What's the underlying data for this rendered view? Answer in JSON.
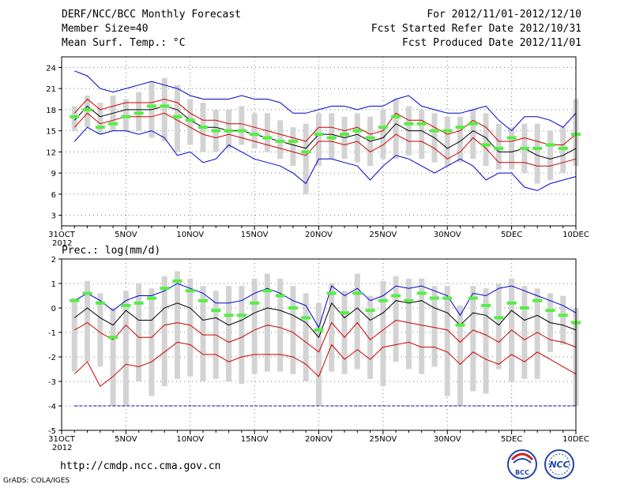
{
  "header": {
    "title": "DERF/NCC/BCC Monthly Forecast",
    "member_size": "Member Size=40",
    "variable": "Mean Surf. Temp.: °C",
    "period": "For 2012/11/01-2012/12/10",
    "refer_date": "Fcst Started Refer Date 2012/10/31",
    "produced_date": "Fcst Produced Date 2012/11/01"
  },
  "footer": {
    "url": "http://cmdp.ncc.cma.gov.cn",
    "credit": "GrADS: COLA/IGES",
    "logo_bcc": "BCC",
    "logo_ncc": "NCC"
  },
  "colors": {
    "envelope": "#0000cc",
    "percentile": "#cc0000",
    "median": "#000000",
    "bar": "#d3d3d3",
    "climatology": "#55ee44"
  },
  "chart_data": [
    {
      "type": "line",
      "title": "Mean Surf. Temp.: °C",
      "x_tick_labels": [
        "31OCT",
        "5NOV",
        "10NOV",
        "15NOV",
        "20NOV",
        "25NOV",
        "30NOV",
        "5DEC",
        "10DEC"
      ],
      "x_tick_days": [
        0,
        5,
        10,
        15,
        20,
        25,
        30,
        35,
        40
      ],
      "x_year_label": "2012",
      "x_range": [
        0,
        40
      ],
      "ylim": [
        1.5,
        25.5
      ],
      "y_ticks": [
        3,
        6,
        9,
        12,
        15,
        18,
        21,
        24
      ],
      "days": [
        1,
        2,
        3,
        4,
        5,
        6,
        7,
        8,
        9,
        10,
        11,
        12,
        13,
        14,
        15,
        16,
        17,
        18,
        19,
        20,
        21,
        22,
        23,
        24,
        25,
        26,
        27,
        28,
        29,
        30,
        31,
        32,
        33,
        34,
        35,
        36,
        37,
        38,
        39,
        40
      ],
      "series": [
        {
          "name": "max",
          "values": [
            23.5,
            22.8,
            21.0,
            20.5,
            21.0,
            21.5,
            22.0,
            21.5,
            21.0,
            20.0,
            19.5,
            19.5,
            19.5,
            20.0,
            19.5,
            19.5,
            19.0,
            17.5,
            17.5,
            18.0,
            18.5,
            18.5,
            18.0,
            18.5,
            18.5,
            19.5,
            20.0,
            18.5,
            18.0,
            17.5,
            17.5,
            18.0,
            18.5,
            16.5,
            15.0,
            17.0,
            17.0,
            16.5,
            15.5,
            17.5
          ]
        },
        {
          "name": "p75",
          "values": [
            17.5,
            19.5,
            18.0,
            18.5,
            19.0,
            19.0,
            19.0,
            19.5,
            19.0,
            17.5,
            16.5,
            16.5,
            16.0,
            16.0,
            15.5,
            15.0,
            14.5,
            14.0,
            13.5,
            15.5,
            15.5,
            15.0,
            15.5,
            14.5,
            15.0,
            17.5,
            16.5,
            16.5,
            15.5,
            14.5,
            15.0,
            16.5,
            15.5,
            13.5,
            13.5,
            14.0,
            13.5,
            13.0,
            13.0,
            14.5
          ]
        },
        {
          "name": "median",
          "values": [
            16.5,
            18.5,
            17.0,
            17.5,
            18.0,
            18.0,
            18.0,
            18.5,
            18.0,
            16.5,
            15.5,
            15.5,
            15.0,
            15.0,
            14.5,
            14.0,
            13.5,
            13.0,
            12.5,
            14.5,
            14.5,
            14.0,
            14.5,
            13.5,
            14.0,
            16.0,
            15.0,
            15.0,
            14.0,
            12.5,
            13.5,
            15.0,
            14.0,
            12.0,
            12.0,
            12.5,
            11.5,
            11.0,
            11.5,
            12.5
          ]
        },
        {
          "name": "p25",
          "values": [
            15.5,
            17.5,
            16.0,
            16.5,
            17.0,
            17.0,
            17.0,
            17.5,
            16.5,
            15.5,
            14.5,
            14.0,
            14.5,
            14.0,
            13.5,
            13.0,
            12.5,
            12.0,
            11.5,
            13.5,
            13.5,
            13.0,
            13.5,
            12.0,
            13.0,
            14.5,
            13.5,
            13.5,
            12.5,
            11.0,
            12.0,
            14.0,
            12.5,
            10.5,
            10.5,
            10.5,
            10.0,
            10.0,
            10.5,
            11.0
          ]
        },
        {
          "name": "min",
          "values": [
            13.5,
            15.5,
            14.5,
            15.0,
            15.0,
            14.5,
            15.0,
            14.0,
            11.5,
            12.0,
            10.5,
            11.0,
            13.0,
            12.0,
            11.0,
            10.5,
            10.0,
            9.0,
            7.5,
            11.0,
            11.0,
            10.5,
            10.0,
            8.0,
            10.0,
            11.5,
            11.0,
            10.0,
            9.0,
            10.0,
            11.0,
            10.0,
            8.0,
            9.0,
            9.0,
            7.0,
            6.5,
            7.5,
            8.0,
            8.5
          ]
        }
      ],
      "bars": {
        "lo": [
          15.0,
          15.5,
          14.5,
          15.0,
          15.0,
          15.0,
          14.0,
          13.5,
          12.0,
          13.0,
          12.0,
          12.0,
          12.5,
          13.0,
          12.5,
          12.0,
          11.0,
          10.0,
          6.0,
          10.0,
          11.0,
          11.0,
          10.5,
          10.0,
          11.0,
          11.0,
          11.5,
          11.0,
          10.5,
          10.0,
          10.5,
          11.0,
          10.0,
          9.5,
          9.5,
          9.0,
          7.5,
          8.0,
          9.0,
          10.0
        ],
        "hi": [
          18.5,
          20.0,
          19.0,
          20.0,
          19.5,
          20.5,
          22.0,
          22.5,
          21.5,
          19.5,
          19.0,
          18.0,
          18.0,
          18.5,
          17.5,
          17.5,
          16.5,
          15.5,
          16.0,
          17.5,
          17.5,
          17.0,
          17.5,
          17.0,
          18.0,
          19.5,
          18.5,
          18.0,
          17.5,
          17.0,
          17.0,
          18.0,
          17.5,
          16.0,
          15.5,
          16.0,
          16.0,
          15.0,
          15.5,
          19.5
        ]
      },
      "climatology": [
        17.0,
        18.0,
        15.5,
        16.0,
        17.0,
        17.5,
        18.5,
        18.5,
        17.0,
        16.5,
        15.5,
        15.0,
        15.0,
        15.0,
        14.5,
        14.0,
        13.5,
        13.5,
        12.0,
        14.5,
        14.0,
        14.5,
        15.0,
        14.0,
        15.5,
        17.0,
        16.0,
        16.0,
        15.0,
        15.0,
        15.5,
        16.0,
        13.0,
        12.5,
        14.0,
        12.5,
        12.5,
        13.0,
        12.5,
        14.5
      ]
    },
    {
      "type": "line",
      "title": "Prec.: log(mm/d)",
      "x_tick_labels": [
        "31OCT",
        "5NOV",
        "10NOV",
        "15NOV",
        "20NOV",
        "25NOV",
        "30NOV",
        "5DEC",
        "10DEC"
      ],
      "x_tick_days": [
        0,
        5,
        10,
        15,
        20,
        25,
        30,
        35,
        40
      ],
      "x_year_label": "2012",
      "x_range": [
        0,
        40
      ],
      "ylim": [
        -5,
        2
      ],
      "y_ticks": [
        -5,
        -4,
        -3,
        -2,
        -1,
        0,
        1,
        2
      ],
      "days": [
        1,
        2,
        3,
        4,
        5,
        6,
        7,
        8,
        9,
        10,
        11,
        12,
        13,
        14,
        15,
        16,
        17,
        18,
        19,
        20,
        21,
        22,
        23,
        24,
        25,
        26,
        27,
        28,
        29,
        30,
        31,
        32,
        33,
        34,
        35,
        36,
        37,
        38,
        39,
        40
      ],
      "series": [
        {
          "name": "max",
          "values": [
            0.3,
            0.6,
            0.3,
            -0.1,
            0.3,
            0.5,
            0.5,
            0.7,
            1.0,
            0.8,
            0.6,
            0.2,
            0.2,
            0.3,
            0.6,
            0.8,
            0.6,
            0.3,
            0.1,
            -0.8,
            0.9,
            0.5,
            0.8,
            0.3,
            0.5,
            0.9,
            0.8,
            0.9,
            0.7,
            0.5,
            -0.3,
            0.6,
            0.5,
            0.8,
            0.9,
            0.7,
            0.5,
            0.3,
            0.1,
            -0.2
          ]
        },
        {
          "name": "median",
          "values": [
            -0.4,
            0.0,
            -0.4,
            -0.7,
            -0.1,
            -0.5,
            -0.5,
            0.0,
            0.2,
            0.0,
            -0.5,
            -0.4,
            -0.7,
            -0.5,
            -0.2,
            0.0,
            -0.1,
            -0.3,
            -0.6,
            -1.2,
            0.2,
            -0.4,
            0.0,
            -0.5,
            -0.2,
            0.3,
            0.2,
            0.3,
            0.0,
            -0.2,
            -0.7,
            -0.2,
            -0.3,
            -0.7,
            -0.1,
            -0.5,
            -0.3,
            -0.6,
            -0.7,
            -0.9
          ]
        },
        {
          "name": "p25",
          "values": [
            -0.9,
            -0.6,
            -1.0,
            -1.3,
            -0.7,
            -1.2,
            -1.2,
            -0.7,
            -0.6,
            -0.7,
            -1.1,
            -1.1,
            -1.4,
            -1.2,
            -0.9,
            -0.7,
            -0.8,
            -1.0,
            -1.4,
            -1.8,
            -0.6,
            -1.2,
            -0.6,
            -1.3,
            -0.9,
            -0.5,
            -0.6,
            -0.7,
            -0.8,
            -0.9,
            -1.4,
            -0.9,
            -1.1,
            -1.4,
            -0.9,
            -1.3,
            -1.0,
            -1.3,
            -1.4,
            -1.6
          ]
        },
        {
          "name": "p10",
          "values": [
            -2.7,
            -2.2,
            -3.2,
            -2.8,
            -2.3,
            -2.4,
            -2.2,
            -1.8,
            -1.4,
            -1.5,
            -1.9,
            -1.9,
            -2.2,
            -2.0,
            -1.9,
            -1.9,
            -1.9,
            -2.0,
            -2.3,
            -2.8,
            -1.5,
            -2.1,
            -1.7,
            -2.1,
            -1.6,
            -1.5,
            -1.4,
            -1.6,
            -1.6,
            -1.8,
            -2.3,
            -1.8,
            -2.1,
            -2.3,
            -1.9,
            -2.2,
            -1.8,
            -2.1,
            -2.4,
            -2.7
          ]
        },
        {
          "name": "min",
          "values": [
            -4,
            -4,
            -4,
            -4,
            -4,
            -4,
            -4,
            -4,
            -4,
            -4,
            -4,
            -4,
            -4,
            -4,
            -4,
            -4,
            -4,
            -4,
            -4,
            -4,
            -4,
            -4,
            -4,
            -4,
            -4,
            -4,
            -4,
            -4,
            -4,
            -4,
            -4,
            -4,
            -4,
            -4,
            -4,
            -4,
            -4,
            -4,
            -4,
            -4
          ]
        }
      ],
      "bars": {
        "lo": [
          -2.6,
          -2.2,
          -2.4,
          -4.0,
          -4.0,
          -3.0,
          -3.6,
          -3.2,
          -2.9,
          -2.8,
          -3.0,
          -2.9,
          -3.0,
          -3.1,
          -2.7,
          -2.6,
          -2.6,
          -2.7,
          -3.0,
          -4.0,
          -2.6,
          -2.7,
          -2.5,
          -2.9,
          -3.2,
          -2.2,
          -2.5,
          -2.7,
          -2.4,
          -3.6,
          -4.0,
          -3.4,
          -3.5,
          -2.5,
          -3.0,
          -2.9,
          -2.9,
          -1.8,
          -1.5,
          -4.0
        ],
        "hi": [
          0.4,
          1.1,
          0.6,
          0.0,
          0.7,
          1.0,
          0.8,
          1.3,
          1.5,
          1.2,
          0.9,
          0.7,
          0.9,
          0.9,
          1.2,
          1.4,
          1.2,
          0.9,
          0.6,
          0.2,
          1.0,
          0.7,
          1.4,
          0.5,
          1.1,
          1.3,
          1.2,
          1.2,
          0.9,
          0.9,
          0.1,
          0.9,
          0.8,
          1.0,
          1.2,
          0.9,
          0.8,
          0.6,
          0.5,
          0.0
        ]
      },
      "climatology": [
        0.3,
        0.6,
        0.2,
        -1.2,
        0.1,
        0.2,
        0.4,
        0.8,
        1.1,
        0.7,
        0.3,
        -0.1,
        -0.3,
        -0.3,
        0.2,
        0.7,
        0.5,
        0.0,
        -0.4,
        -0.9,
        0.6,
        -0.2,
        0.6,
        -0.1,
        0.3,
        0.5,
        0.3,
        0.6,
        0.4,
        0.4,
        -0.7,
        0.4,
        0.1,
        -0.4,
        0.2,
        0.0,
        0.3,
        -0.1,
        -0.3,
        -0.6
      ]
    }
  ]
}
